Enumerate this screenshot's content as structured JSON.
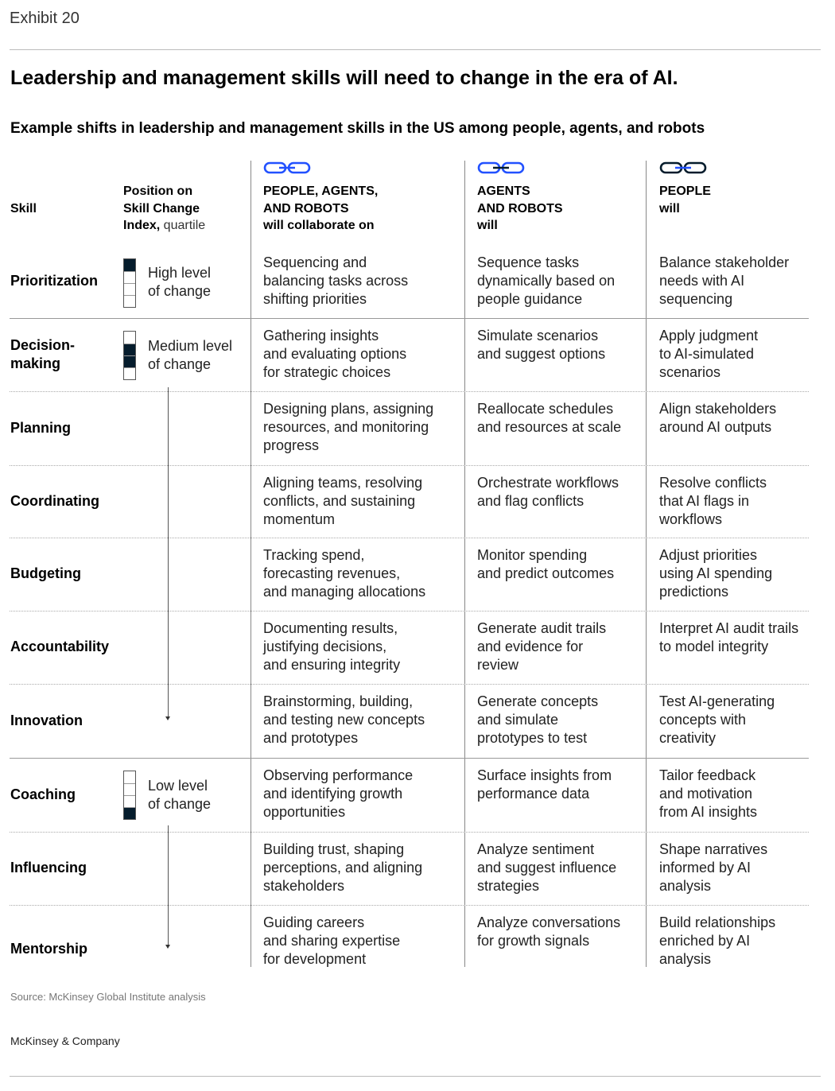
{
  "exhibit": "Exhibit 20",
  "title": "Leadership and management skills will need to change in the era of AI.",
  "subtitle": "Example shifts in leadership and management skills in the US among people, agents, and robots",
  "headers": {
    "skill": "Skill",
    "position_line1": "Position on",
    "position_line2": "Skill Change",
    "position_line3_bold": "Index,",
    "position_line3_light": " quartile",
    "col1_line1": "PEOPLE, AGENTS,",
    "col1_line2": "AND ROBOTS",
    "col1_line3": "will collaborate on",
    "col2_line1": "AGENTS",
    "col2_line2": "AND ROBOTS",
    "col2_line3": "will",
    "col3_line1": "PEOPLE",
    "col3_line2": "will"
  },
  "icons": {
    "col1": "link-chain-icon",
    "col2": "link-chain-icon",
    "col3": "link-chain-icon",
    "col1_color": "#2251ff",
    "col2_color": "#2251ff",
    "col3_color": "#051c2c"
  },
  "levels": {
    "high": {
      "line1": "High level",
      "line2": "of change",
      "quartile": 1
    },
    "medium": {
      "line1": "Medium level",
      "line2": "of change",
      "quartile": 2
    },
    "low": {
      "line1": "Low level",
      "line2": "of change",
      "quartile": 4
    }
  },
  "rows": [
    {
      "skill_line1": "Prioritization",
      "skill_line2": "",
      "c1": [
        "Sequencing and",
        "balancing tasks across",
        "shifting priorities"
      ],
      "c2": [
        "Sequence tasks",
        "dynamically based on",
        "people guidance"
      ],
      "c3": [
        "Balance stakeholder",
        "needs with AI",
        "sequencing"
      ]
    },
    {
      "skill_line1": "Decision-",
      "skill_line2": "making",
      "c1": [
        "Gathering insights",
        "and evaluating options",
        "for strategic choices"
      ],
      "c2": [
        "Simulate scenarios",
        "and suggest options",
        ""
      ],
      "c3": [
        "Apply judgment",
        "to AI-simulated",
        "scenarios"
      ]
    },
    {
      "skill_line1": "Planning",
      "skill_line2": "",
      "c1": [
        "Designing plans, assigning",
        "resources, and monitoring",
        "progress"
      ],
      "c2": [
        "Reallocate schedules",
        "and resources at scale",
        ""
      ],
      "c3": [
        "Align stakeholders",
        "around AI outputs",
        ""
      ]
    },
    {
      "skill_line1": "Coordinating",
      "skill_line2": "",
      "c1": [
        "Aligning teams, resolving",
        "conflicts, and sustaining",
        "momentum"
      ],
      "c2": [
        "Orchestrate workflows",
        "and flag conflicts",
        ""
      ],
      "c3": [
        "Resolve conflicts",
        "that AI flags in",
        "workflows"
      ]
    },
    {
      "skill_line1": "Budgeting",
      "skill_line2": "",
      "c1": [
        "Tracking spend,",
        "forecasting revenues,",
        "and managing allocations"
      ],
      "c2": [
        "Monitor spending",
        "and predict outcomes",
        ""
      ],
      "c3": [
        "Adjust priorities",
        "using AI spending",
        "predictions"
      ]
    },
    {
      "skill_line1": "Accountability",
      "skill_line2": "",
      "c1": [
        "Documenting results,",
        "justifying decisions,",
        "and ensuring integrity"
      ],
      "c2": [
        "Generate audit trails",
        "and evidence for",
        "review"
      ],
      "c3": [
        "Interpret AI audit trails",
        "to model integrity",
        ""
      ]
    },
    {
      "skill_line1": "Innovation",
      "skill_line2": "",
      "c1": [
        "Brainstorming, building,",
        "and testing new concepts",
        "and prototypes"
      ],
      "c2": [
        "Generate concepts",
        "and simulate",
        "prototypes to test"
      ],
      "c3": [
        "Test AI-generating",
        "concepts with",
        "creativity"
      ]
    },
    {
      "skill_line1": "Coaching",
      "skill_line2": "",
      "c1": [
        "Observing performance",
        "and identifying growth",
        "opportunities"
      ],
      "c2": [
        "Surface insights from",
        "performance data",
        ""
      ],
      "c3": [
        "Tailor feedback",
        "and motivation",
        "from AI insights"
      ]
    },
    {
      "skill_line1": "Influencing",
      "skill_line2": "",
      "c1": [
        "Building trust, shaping",
        "perceptions, and aligning",
        "stakeholders"
      ],
      "c2": [
        "Analyze sentiment",
        "and suggest influence",
        "strategies"
      ],
      "c3": [
        "Shape narratives",
        "informed by AI",
        "analysis"
      ]
    },
    {
      "skill_line1": "Mentorship",
      "skill_line2": "",
      "c1": [
        "Guiding careers",
        "and sharing expertise",
        "for development"
      ],
      "c2": [
        "Analyze conversations",
        "for growth signals",
        ""
      ],
      "c3": [
        "Build relationships",
        "enriched by AI",
        "analysis"
      ]
    }
  ],
  "source": "Source: McKinsey Global Institute analysis",
  "brand": "McKinsey & Company"
}
